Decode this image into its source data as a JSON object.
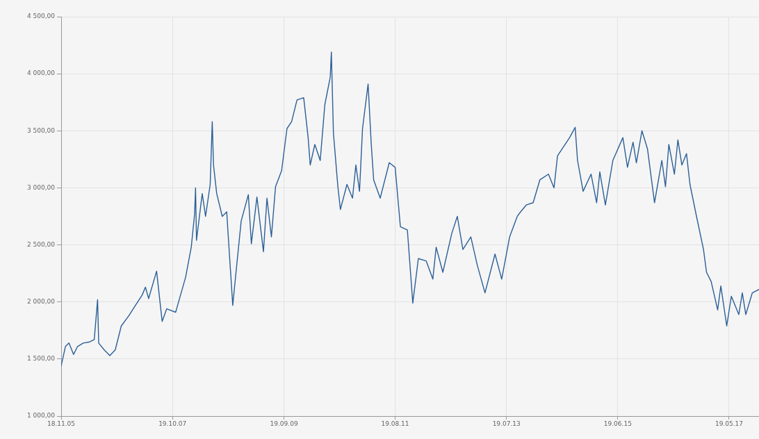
{
  "chart_data": {
    "type": "line",
    "grid": true,
    "marker": "none",
    "line_style": "solid",
    "legend": false,
    "xlim": [
      "2005-11-18",
      "2017-11-23"
    ],
    "xticks": [
      {
        "value": "2005-11-18",
        "label": "18.11.05"
      },
      {
        "value": "2007-10-19",
        "label": "19.10.07"
      },
      {
        "value": "2009-09-19",
        "label": "19.09.09"
      },
      {
        "value": "2011-08-19",
        "label": "19.08.11"
      },
      {
        "value": "2013-07-19",
        "label": "19.07.13"
      },
      {
        "value": "2015-06-19",
        "label": "19.06.15"
      },
      {
        "value": "2017-05-19",
        "label": "19.05.17"
      }
    ],
    "ylim": [
      1000,
      4500
    ],
    "yticks": [
      {
        "value": 1000,
        "label": "1 000,00"
      },
      {
        "value": 1500,
        "label": "1 500,00"
      },
      {
        "value": 2000,
        "label": "2 000,00"
      },
      {
        "value": 2500,
        "label": "2 500,00"
      },
      {
        "value": 3000,
        "label": "3 000,00"
      },
      {
        "value": 3500,
        "label": "3 500,00"
      },
      {
        "value": 4000,
        "label": "4 000,00"
      },
      {
        "value": 4500,
        "label": "4 500,00"
      }
    ],
    "series": [
      {
        "color": "#2b5f97",
        "x": [
          "2005-11-18",
          "2005-12-15",
          "2006-01-06",
          "2006-02-04",
          "2006-03-01",
          "2006-04-06",
          "2006-05-16",
          "2006-06-14",
          "2006-07-05",
          "2006-07-12",
          "2006-08-16",
          "2006-09-20",
          "2006-10-24",
          "2006-12-01",
          "2007-01-18",
          "2007-02-28",
          "2007-04-11",
          "2007-05-02",
          "2007-05-22",
          "2007-07-11",
          "2007-08-15",
          "2007-09-13",
          "2007-11-08",
          "2008-01-10",
          "2008-02-14",
          "2008-03-06",
          "2008-03-12",
          "2008-03-18",
          "2008-04-23",
          "2008-05-14",
          "2008-06-12",
          "2008-06-25",
          "2008-07-03",
          "2008-07-23",
          "2008-08-27",
          "2008-09-24",
          "2008-10-03",
          "2008-11-01",
          "2008-11-20",
          "2008-12-24",
          "2009-02-07",
          "2009-02-26",
          "2009-04-02",
          "2009-05-13",
          "2009-06-04",
          "2009-07-02",
          "2009-07-28",
          "2009-09-04",
          "2009-10-08",
          "2009-11-06",
          "2009-12-10",
          "2010-01-21",
          "2010-02-18",
          "2010-03-03",
          "2010-04-01",
          "2010-05-05",
          "2010-06-03",
          "2010-07-07",
          "2010-07-14",
          "2010-07-27",
          "2010-08-24",
          "2010-09-09",
          "2010-10-20",
          "2010-11-24",
          "2010-12-15",
          "2011-01-07",
          "2011-01-26",
          "2011-03-02",
          "2011-03-22",
          "2011-04-06",
          "2011-05-17",
          "2011-07-13",
          "2011-08-19",
          "2011-09-21",
          "2011-11-04",
          "2011-12-08",
          "2012-01-12",
          "2012-03-01",
          "2012-04-12",
          "2012-05-03",
          "2012-06-14",
          "2012-08-09",
          "2012-09-13",
          "2012-10-18",
          "2012-12-07",
          "2013-01-17",
          "2013-03-06",
          "2013-05-08",
          "2013-06-19",
          "2013-08-08",
          "2013-09-25",
          "2013-10-16",
          "2013-11-21",
          "2014-01-03",
          "2014-02-14",
          "2014-04-09",
          "2014-05-14",
          "2014-06-05",
          "2014-08-20",
          "2014-09-24",
          "2014-10-09",
          "2014-11-13",
          "2015-01-02",
          "2015-02-06",
          "2015-02-26",
          "2015-04-02",
          "2015-05-19",
          "2015-07-21",
          "2015-08-19",
          "2015-09-23",
          "2015-10-14",
          "2015-11-18",
          "2015-12-23",
          "2016-02-05",
          "2016-03-22",
          "2016-04-14",
          "2016-05-05",
          "2016-06-09",
          "2016-07-01",
          "2016-07-26",
          "2016-08-24",
          "2016-09-15",
          "2016-10-26",
          "2016-12-09",
          "2016-12-28",
          "2017-01-26",
          "2017-03-08",
          "2017-03-28",
          "2017-05-04",
          "2017-06-02",
          "2017-07-19",
          "2017-08-10",
          "2017-09-01",
          "2017-10-12",
          "2017-11-23"
        ],
        "values": [
          1440,
          1610,
          1640,
          1540,
          1610,
          1640,
          1650,
          1670,
          2020,
          1640,
          1580,
          1530,
          1580,
          1790,
          1880,
          1970,
          2060,
          2130,
          2030,
          2270,
          1830,
          1940,
          1910,
          2220,
          2480,
          2770,
          3000,
          2540,
          2950,
          2750,
          3030,
          3580,
          3200,
          2950,
          2750,
          2790,
          2590,
          1970,
          2240,
          2710,
          2940,
          2510,
          2920,
          2440,
          2910,
          2570,
          3010,
          3150,
          3520,
          3580,
          3770,
          3790,
          3440,
          3200,
          3380,
          3240,
          3730,
          3970,
          4190,
          3480,
          3010,
          2810,
          3030,
          2910,
          3200,
          2970,
          3520,
          3910,
          3380,
          3070,
          2910,
          3220,
          3180,
          2660,
          2630,
          1990,
          2380,
          2360,
          2200,
          2480,
          2260,
          2600,
          2750,
          2460,
          2570,
          2320,
          2080,
          2420,
          2200,
          2570,
          2750,
          2790,
          2850,
          2870,
          3070,
          3120,
          3000,
          3280,
          3440,
          3530,
          3240,
          2970,
          3120,
          2870,
          3140,
          2850,
          3240,
          3440,
          3180,
          3400,
          3220,
          3500,
          3340,
          2870,
          3240,
          3010,
          3380,
          3120,
          3420,
          3200,
          3300,
          3030,
          2750,
          2460,
          2260,
          2180,
          1930,
          2140,
          1790,
          2050,
          1890,
          2080,
          1890,
          2080,
          2110
        ]
      }
    ]
  }
}
